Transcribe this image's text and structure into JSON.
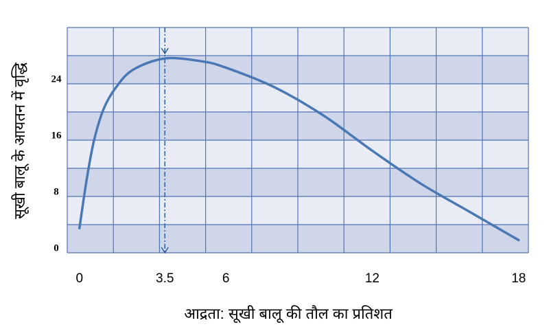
{
  "chart_data": {
    "type": "line",
    "x_title": "आद्रता: सूखी बालू की तौल का प्रतिशत",
    "y_title": "सूखी बालू के आयतन में वृद्धि",
    "x": [
      0,
      0.3,
      0.6,
      1,
      1.5,
      2.2,
      3.5,
      5,
      6,
      8,
      10,
      12,
      14,
      16,
      18
    ],
    "series": [
      {
        "color": "#4a78b5",
        "values": [
          3.5,
          10.5,
          16,
          20.5,
          23.5,
          26,
          27.6,
          27.2,
          26.3,
          23.5,
          19.5,
          14.5,
          9.8,
          5.8,
          1.8
        ]
      }
    ],
    "xlim": [
      -0.5,
      18.4
    ],
    "xticks": [
      0,
      3.5,
      6,
      12,
      18
    ],
    "ylim": [
      0,
      32
    ],
    "yticks": [
      0,
      8,
      16,
      24
    ],
    "marker_x": 3.5,
    "grid": true
  }
}
